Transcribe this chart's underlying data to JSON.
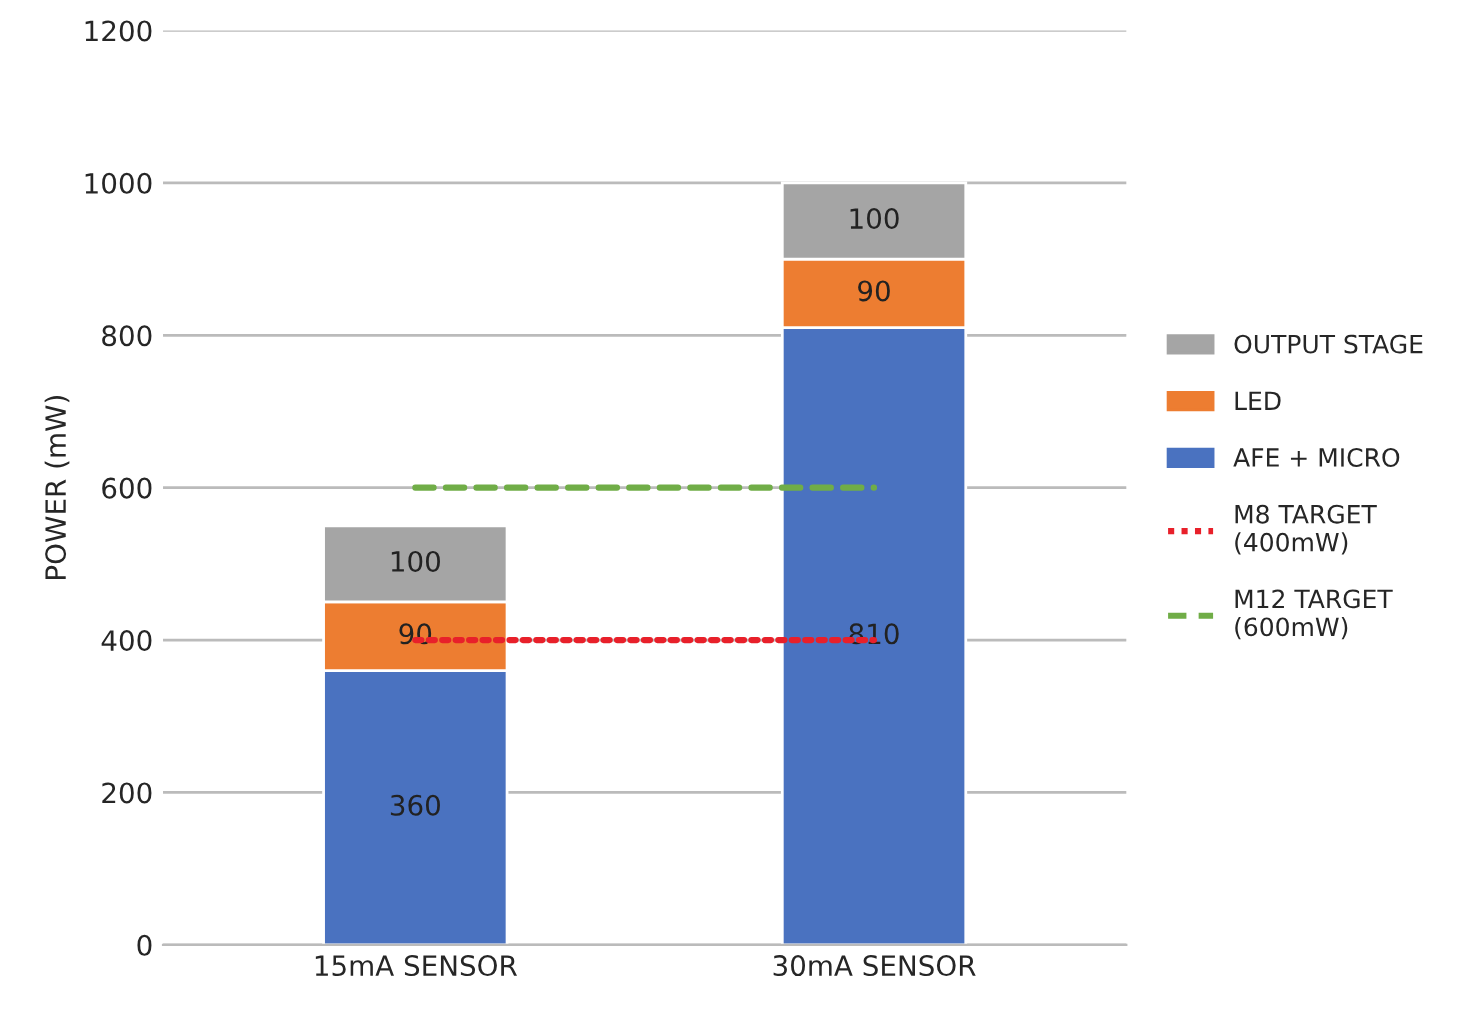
{
  "chart_data": {
    "type": "bar",
    "stacked": true,
    "categories": [
      "15mA SENSOR",
      "30mA SENSOR"
    ],
    "ylabel": "POWER (mW)",
    "ylim": [
      0,
      1200
    ],
    "yticks": [
      0,
      200,
      400,
      600,
      800,
      1000,
      1200
    ],
    "grid": "y",
    "legend": "right",
    "series": [
      {
        "name": "AFE + MICRO",
        "color": "#4a72c0",
        "values": [
          360,
          810
        ],
        "value_labels": [
          "360",
          "810"
        ]
      },
      {
        "name": "LED",
        "color": "#ed7d31",
        "values": [
          90,
          90
        ],
        "value_labels": [
          "90",
          "90"
        ]
      },
      {
        "name": "OUTPUT STAGE",
        "color": "#a5a5a5",
        "values": [
          100,
          100
        ],
        "value_labels": [
          "100",
          "100"
        ]
      },
      {
        "name": "M8 TARGET\n(400mW)",
        "type": "line",
        "color": "#e8202a",
        "line_style": "dotted",
        "values": [
          400,
          400
        ]
      },
      {
        "name": "M12 TARGET\n(600mW)",
        "type": "line",
        "color": "#70ad47",
        "line_style": "dashed",
        "values": [
          600,
          600
        ]
      }
    ]
  }
}
